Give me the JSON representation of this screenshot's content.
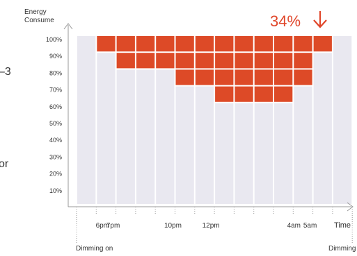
{
  "edge_text": {
    "left_mid": "–3",
    "left_low": "or"
  },
  "chart_data": {
    "type": "bar",
    "ylabel": "Energy Consume",
    "xlabel": "Time",
    "headline": "34%",
    "headline_color": "#e0462a",
    "ylim": [
      0,
      100
    ],
    "yticks": [
      "10%",
      "20%",
      "30%",
      "40%",
      "50%",
      "60%",
      "70%",
      "80%",
      "90%",
      "100%"
    ],
    "slot_labels": [
      "",
      "6pm",
      "7pm",
      "",
      "",
      "10pm",
      "",
      "12pm",
      "",
      "",
      "",
      "4am",
      "5am",
      "Time"
    ],
    "slot_levels": [
      100,
      90,
      80,
      80,
      80,
      70,
      70,
      60,
      60,
      60,
      60,
      70,
      90,
      100
    ],
    "annotations": [
      "Dimming on",
      "Dimming"
    ],
    "colors": {
      "saved": "#dd4a27",
      "used": "#e9e8f0",
      "axis": "#9a9a9a",
      "text": "#333333",
      "headline": "#e0462a"
    }
  }
}
